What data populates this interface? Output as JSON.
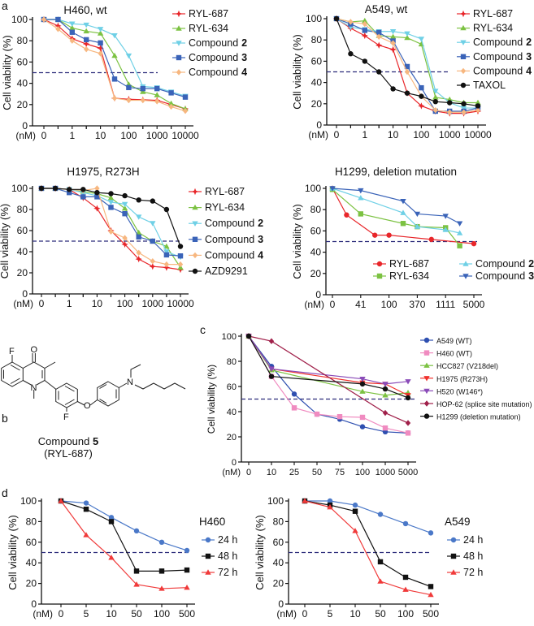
{
  "panel_labels": {
    "a": "a",
    "b": "b",
    "c": "c",
    "d": "d"
  },
  "structure": {
    "name": "Compound",
    "name_bold": "5",
    "alias": "(RYL-687)",
    "atoms": {
      "f1": "F",
      "o1": "O",
      "n1": "N",
      "f2": "F",
      "o2": "O",
      "n2": "N"
    }
  },
  "chart_data": [
    {
      "id": "a1",
      "type": "line",
      "title": "H460, wt",
      "ylabel": "Cell viability (%)",
      "xunit": "(nM)",
      "ylim": [
        0,
        100
      ],
      "yticks": [
        0,
        20,
        40,
        60,
        80,
        100
      ],
      "reference_line": 50,
      "x_ticks": [
        {
          "pos": 0,
          "label": "0"
        },
        {
          "pos": 2,
          "label": "1"
        },
        {
          "pos": 4,
          "label": "10"
        },
        {
          "pos": 6,
          "label": "100"
        },
        {
          "pos": 8,
          "label": "1000"
        },
        {
          "pos": 10,
          "label": "10000"
        }
      ],
      "series": [
        {
          "name": "RYL-687",
          "color": "#e8262a",
          "marker": "star",
          "y": [
            100,
            94,
            82,
            77,
            73,
            26,
            25,
            24.5,
            24,
            20,
            16
          ]
        },
        {
          "name": "RYL-634",
          "color": "#7cc242",
          "marker": "triup",
          "y": [
            100,
            100,
            92,
            89,
            87,
            66,
            39,
            32,
            29,
            21,
            16
          ]
        },
        {
          "name": "Compound",
          "bold": "2",
          "color": "#6fd0e6",
          "marker": "tridown",
          "y": [
            100,
            100,
            96,
            95,
            91,
            85,
            66,
            37,
            36,
            32,
            28
          ]
        },
        {
          "name": "Compound",
          "bold": "3",
          "color": "#3a63b8",
          "marker": "square",
          "y": [
            100,
            100,
            88,
            81,
            78,
            44,
            36,
            35,
            35,
            31,
            27
          ]
        },
        {
          "name": "Compound",
          "bold": "4",
          "color": "#f7b780",
          "marker": "diamond",
          "y": [
            100,
            91,
            80,
            72,
            68,
            26,
            24,
            24,
            23,
            18,
            14
          ]
        }
      ]
    },
    {
      "id": "a2",
      "type": "line",
      "title": "A549, wt",
      "ylabel": "Cell viability (%)",
      "xunit": "(nM)",
      "ylim": [
        0,
        100
      ],
      "yticks": [
        0,
        20,
        40,
        60,
        80,
        100
      ],
      "reference_line": 50,
      "x_ticks": [
        {
          "pos": 0,
          "label": "0"
        },
        {
          "pos": 2,
          "label": "1"
        },
        {
          "pos": 4,
          "label": "10"
        },
        {
          "pos": 6,
          "label": "100"
        },
        {
          "pos": 8,
          "label": "1000"
        },
        {
          "pos": 10,
          "label": "10000"
        }
      ],
      "series": [
        {
          "name": "RYL-687",
          "color": "#e8262a",
          "marker": "star",
          "y": [
            100,
            91,
            84,
            75,
            71,
            30,
            18,
            13,
            11,
            11,
            13
          ]
        },
        {
          "name": "RYL-634",
          "color": "#7cc242",
          "marker": "triup",
          "y": [
            100,
            97,
            98,
            84,
            83,
            82,
            76,
            26,
            24,
            21,
            21
          ]
        },
        {
          "name": "Compound",
          "bold": "2",
          "color": "#6fd0e6",
          "marker": "tridown",
          "y": [
            100,
            92,
            90,
            88,
            88,
            86,
            81,
            32,
            21,
            16,
            16
          ]
        },
        {
          "name": "Compound",
          "bold": "3",
          "color": "#3a63b8",
          "marker": "square",
          "y": [
            100,
            95,
            89,
            87,
            79,
            55,
            35,
            13,
            13,
            13,
            16
          ]
        },
        {
          "name": "Compound",
          "bold": "4",
          "color": "#f7b780",
          "marker": "diamond",
          "y": [
            100,
            97,
            95,
            83,
            77,
            50,
            27,
            14,
            12,
            12,
            14
          ]
        },
        {
          "name": "TAXOL",
          "color": "#111111",
          "marker": "circle",
          "y": [
            100,
            67,
            60,
            50,
            34,
            30,
            27,
            22,
            21,
            20,
            18
          ]
        }
      ]
    },
    {
      "id": "a3",
      "type": "line",
      "title": "H1975, R273H",
      "ylabel": "Cell viability (%)",
      "xunit": "(nM)",
      "ylim": [
        0,
        100
      ],
      "yticks": [
        0,
        20,
        40,
        60,
        80,
        100
      ],
      "reference_line": 50,
      "x_ticks": [
        {
          "pos": 0,
          "label": "0"
        },
        {
          "pos": 2,
          "label": "1"
        },
        {
          "pos": 4,
          "label": "10"
        },
        {
          "pos": 6,
          "label": "100"
        },
        {
          "pos": 8,
          "label": "1000"
        },
        {
          "pos": 10,
          "label": "10000"
        }
      ],
      "series": [
        {
          "name": "RYL-687",
          "color": "#e8262a",
          "marker": "star",
          "y": [
            100,
            100,
            99,
            91,
            81,
            60,
            47,
            33,
            26,
            25,
            23
          ]
        },
        {
          "name": "RYL-634",
          "color": "#7cc242",
          "marker": "triup",
          "y": [
            100,
            100,
            99,
            97,
            95,
            91,
            81,
            58,
            50,
            45,
            25
          ]
        },
        {
          "name": "Compound",
          "bold": "2",
          "color": "#6fd0e6",
          "marker": "tridown",
          "y": [
            100,
            100,
            99,
            96,
            93,
            87,
            85,
            73,
            67,
            40,
            35
          ]
        },
        {
          "name": "Compound",
          "bold": "3",
          "color": "#3a63b8",
          "marker": "square",
          "y": [
            100,
            100,
            96,
            92,
            92,
            82,
            76,
            54,
            50,
            37,
            36
          ]
        },
        {
          "name": "Compound",
          "bold": "4",
          "color": "#f7b780",
          "marker": "diamond",
          "y": [
            100,
            100,
            99,
            98,
            100,
            59,
            53,
            39,
            31,
            28,
            28
          ]
        },
        {
          "name": "AZD9291",
          "color": "#111111",
          "marker": "circle",
          "y": [
            100,
            100,
            99,
            99,
            96,
            95,
            93,
            89,
            88,
            80,
            45
          ]
        }
      ]
    },
    {
      "id": "a4",
      "type": "line",
      "title": "H1299, deletion mutation",
      "ylabel": "Cell viability (%)",
      "xunit": "(nM)",
      "ylim": [
        0,
        100
      ],
      "yticks": [
        0,
        20,
        40,
        60,
        80,
        100
      ],
      "reference_line": 50,
      "x_ticks": [
        {
          "pos": 0,
          "label": "0"
        },
        {
          "pos": 1,
          "label": "41"
        },
        {
          "pos": 2,
          "label": "100"
        },
        {
          "pos": 3,
          "label": "370"
        },
        {
          "pos": 4,
          "label": "1111"
        },
        {
          "pos": 5,
          "label": "5000"
        }
      ],
      "series": [
        {
          "name": "RYL-687",
          "color": "#e8262a",
          "marker": "circle",
          "points": [
            [
              0,
              100
            ],
            [
              0.5,
              75
            ],
            [
              1.5,
              56
            ],
            [
              2,
              56
            ],
            [
              3.5,
              52
            ],
            [
              5,
              48
            ]
          ]
        },
        {
          "name": "RYL-634",
          "color": "#7cc242",
          "marker": "square",
          "points": [
            [
              0,
              99
            ],
            [
              1,
              76
            ],
            [
              2.5,
              67
            ],
            [
              3,
              64
            ],
            [
              4,
              63
            ],
            [
              4.5,
              46
            ]
          ]
        },
        {
          "name": "Compound",
          "bold": "2",
          "color": "#6fd0e6",
          "marker": "triup",
          "points": [
            [
              0,
              100
            ],
            [
              1,
              91
            ],
            [
              2.5,
              77
            ],
            [
              3,
              64
            ],
            [
              4,
              61
            ],
            [
              4.5,
              58
            ]
          ]
        },
        {
          "name": "Compound",
          "bold": "3",
          "color": "#3a63b8",
          "marker": "tridown",
          "points": [
            [
              0,
              100
            ],
            [
              1,
              98
            ],
            [
              2.5,
              88
            ],
            [
              3,
              76
            ],
            [
              4,
              74
            ],
            [
              4.5,
              67
            ]
          ]
        }
      ]
    },
    {
      "id": "c",
      "type": "line",
      "title": "",
      "ylabel": "Cell viability (%)",
      "xunit": "(nM)",
      "ylim": [
        0,
        100
      ],
      "yticks": [
        0,
        20,
        40,
        60,
        80,
        100
      ],
      "reference_line": 50,
      "x_ticks": [
        {
          "pos": 0,
          "label": "0"
        },
        {
          "pos": 1,
          "label": "10"
        },
        {
          "pos": 2,
          "label": "25"
        },
        {
          "pos": 3,
          "label": "50"
        },
        {
          "pos": 4,
          "label": "75"
        },
        {
          "pos": 5,
          "label": "100"
        },
        {
          "pos": 6,
          "label": "1000"
        },
        {
          "pos": 7,
          "label": "5000"
        }
      ],
      "series": [
        {
          "name": "A549 (WT)",
          "color": "#2e4fb0",
          "marker": "circle",
          "y": [
            100,
            76,
            54,
            38,
            34,
            28,
            24,
            23
          ]
        },
        {
          "name": "H460 (WT)",
          "color": "#f08bc0",
          "marker": "square",
          "y": [
            100,
            68,
            43,
            38,
            36,
            35.5,
            27,
            23
          ]
        },
        {
          "name": "HCC827 (V218del)",
          "color": "#7cc242",
          "marker": "triup",
          "points": [
            [
              0,
              100
            ],
            [
              1,
              73
            ],
            [
              5,
              56
            ],
            [
              6,
              53
            ],
            [
              7,
              55
            ]
          ]
        },
        {
          "name": "H1975 (R273H)",
          "color": "#f0312c",
          "marker": "tridown",
          "points": [
            [
              0,
              100
            ],
            [
              1,
              74
            ],
            [
              5,
              63
            ],
            [
              6,
              62
            ],
            [
              7,
              53
            ]
          ]
        },
        {
          "name": "H520 (W146*)",
          "color": "#8a4bb8",
          "marker": "tridown",
          "points": [
            [
              0,
              100
            ],
            [
              1,
              74
            ],
            [
              5,
              66
            ],
            [
              6,
              62
            ],
            [
              7,
              64
            ]
          ]
        },
        {
          "name": "HOP-62 (splice site mutation)",
          "color": "#a0204a",
          "marker": "diamond",
          "points": [
            [
              0,
              100
            ],
            [
              1,
              96
            ],
            [
              6,
              39
            ],
            [
              7,
              31
            ]
          ]
        },
        {
          "name": "H1299 (deletion mutation)",
          "color": "#111111",
          "marker": "circle",
          "points": [
            [
              0,
              100
            ],
            [
              1,
              68
            ],
            [
              5,
              62
            ],
            [
              6,
              58
            ],
            [
              7,
              51
            ]
          ]
        }
      ]
    },
    {
      "id": "d1",
      "type": "line",
      "title": "H460",
      "ylabel": "Cell viability (%)",
      "xunit": "(nM)",
      "ylim": [
        0,
        100
      ],
      "yticks": [
        0,
        20,
        40,
        60,
        80,
        100
      ],
      "reference_line": 50,
      "x_ticks": [
        {
          "pos": 0,
          "label": "0"
        },
        {
          "pos": 1,
          "label": "5"
        },
        {
          "pos": 2,
          "label": "10"
        },
        {
          "pos": 3,
          "label": "50"
        },
        {
          "pos": 4,
          "label": "100"
        },
        {
          "pos": 5,
          "label": "500"
        }
      ],
      "series": [
        {
          "name": "24 h",
          "color": "#4a78c8",
          "marker": "circle",
          "y": [
            100,
            98,
            84,
            71,
            60,
            52
          ]
        },
        {
          "name": "48 h",
          "color": "#111111",
          "marker": "square",
          "y": [
            100,
            92,
            80,
            32,
            32,
            33
          ]
        },
        {
          "name": "72 h",
          "color": "#f03a3a",
          "marker": "triup",
          "y": [
            100,
            67,
            45,
            19,
            15,
            16
          ]
        }
      ]
    },
    {
      "id": "d2",
      "type": "line",
      "title": "A549",
      "ylabel": "Cell viability (%)",
      "xunit": "(nM)",
      "ylim": [
        0,
        100
      ],
      "yticks": [
        0,
        20,
        40,
        60,
        80,
        100
      ],
      "reference_line": 50,
      "x_ticks": [
        {
          "pos": 0,
          "label": "0"
        },
        {
          "pos": 1,
          "label": "5"
        },
        {
          "pos": 2,
          "label": "10"
        },
        {
          "pos": 3,
          "label": "50"
        },
        {
          "pos": 4,
          "label": "100"
        },
        {
          "pos": 5,
          "label": "500"
        }
      ],
      "series": [
        {
          "name": "24 h",
          "color": "#4a78c8",
          "marker": "circle",
          "y": [
            100,
            100,
            96,
            87,
            78,
            69
          ]
        },
        {
          "name": "48 h",
          "color": "#111111",
          "marker": "square",
          "y": [
            100,
            96,
            90,
            41,
            26,
            17
          ]
        },
        {
          "name": "72 h",
          "color": "#f03a3a",
          "marker": "triup",
          "y": [
            100,
            94,
            71,
            22,
            14,
            9
          ]
        }
      ]
    }
  ]
}
